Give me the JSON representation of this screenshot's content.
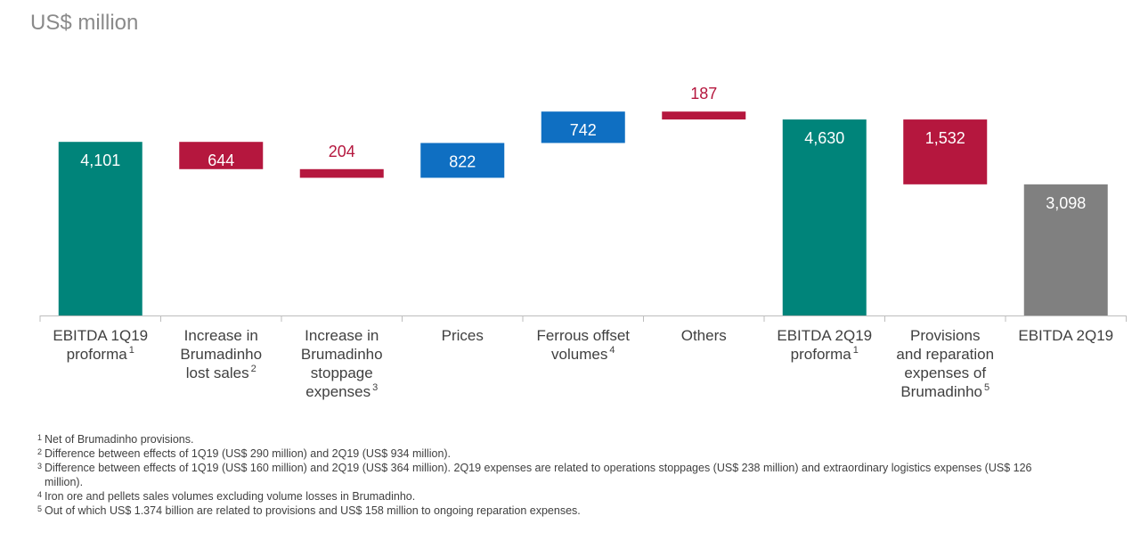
{
  "unit_title": "US$ million",
  "chart_data": {
    "type": "waterfall",
    "title": "US$ million",
    "colors": {
      "total": "#00847a",
      "negative": "#b5173e",
      "positive": "#0f6fc2",
      "final": "#808080",
      "negative_label": "#b5173e",
      "axis": "#bdbdbd"
    },
    "steps": [
      {
        "label": "EBITDA 1Q19 proforma",
        "sup": "1",
        "label_lines": [
          "EBITDA 1Q19",
          "proforma"
        ],
        "value": 4101,
        "display": "4,101",
        "kind": "total",
        "start": 0,
        "end": 4101
      },
      {
        "label": "Increase in Brumadinho lost sales",
        "sup": "2",
        "label_lines": [
          "Increase in",
          "Brumadinho",
          "lost sales"
        ],
        "value": -644,
        "display": "644",
        "kind": "negative",
        "start": 4101,
        "end": 3457
      },
      {
        "label": "Increase in Brumadinho stoppage expenses",
        "sup": "3",
        "label_lines": [
          "Increase in",
          "Brumadinho",
          "stoppage",
          "expenses"
        ],
        "value": -204,
        "display": "204",
        "kind": "negative",
        "start": 3457,
        "end": 3253
      },
      {
        "label": "Prices",
        "sup": "",
        "label_lines": [
          "Prices"
        ],
        "value": 822,
        "display": "822",
        "kind": "positive",
        "start": 3253,
        "end": 4075
      },
      {
        "label": "Ferrous offset volumes",
        "sup": "4",
        "label_lines": [
          "Ferrous offset",
          "volumes"
        ],
        "value": 742,
        "display": "742",
        "kind": "positive",
        "start": 4075,
        "end": 4817
      },
      {
        "label": "Others",
        "sup": "",
        "label_lines": [
          "Others"
        ],
        "value": -187,
        "display": "187",
        "kind": "negative",
        "start": 4817,
        "end": 4630
      },
      {
        "label": "EBITDA 2Q19 proforma",
        "sup": "1",
        "label_lines": [
          "EBITDA 2Q19",
          "proforma"
        ],
        "value": 4630,
        "display": "4,630",
        "kind": "total",
        "start": 0,
        "end": 4630
      },
      {
        "label": "Provisions and reparation expenses of Brumadinho",
        "sup": "5",
        "label_lines": [
          "Provisions",
          "and reparation",
          "expenses of",
          "Brumadinho"
        ],
        "value": -1532,
        "display": "1,532",
        "kind": "negative",
        "start": 4630,
        "end": 3098
      },
      {
        "label": "EBITDA 2Q19",
        "sup": "",
        "label_lines": [
          "EBITDA 2Q19"
        ],
        "value": 3098,
        "display": "3,098",
        "kind": "final",
        "start": 0,
        "end": 3098
      }
    ]
  },
  "footnotes": [
    {
      "num": "1",
      "text": "Net of Brumadinho provisions."
    },
    {
      "num": "2",
      "text": "Difference between effects of 1Q19 (US$ 290 million) and 2Q19 (US$ 934 million)."
    },
    {
      "num": "3",
      "text": "Difference between effects of 1Q19 (US$ 160 million) and 2Q19 (US$ 364 million). 2Q19 expenses are related to operations stoppages (US$ 238 million) and extraordinary logistics expenses (US$ 126 million)."
    },
    {
      "num": "4",
      "text": "Iron ore and pellets sales volumes excluding volume losses in Brumadinho."
    },
    {
      "num": "5",
      "text": "Out of which US$ 1.374 billion are related to provisions and US$ 158 million to ongoing reparation expenses."
    }
  ]
}
